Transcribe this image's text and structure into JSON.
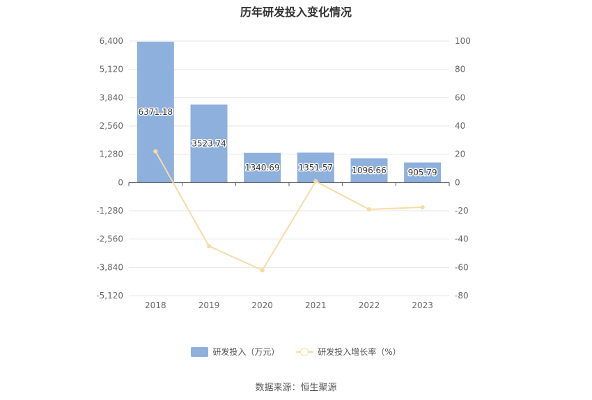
{
  "chart_data": {
    "type": "bar+line",
    "title": "历年研发投入变化情况",
    "categories": [
      "2018",
      "2019",
      "2020",
      "2021",
      "2022",
      "2023"
    ],
    "series": [
      {
        "name": "研发投入（万元）",
        "type": "bar",
        "axis": "left",
        "color": "#8eb0dd",
        "values": [
          6371.18,
          3523.74,
          1340.69,
          1351.57,
          1096.66,
          905.79
        ],
        "labels": [
          "6371.18",
          "3523.74",
          "1340.69",
          "1351.57",
          "1096.66",
          "905.79"
        ]
      },
      {
        "name": "研发投入增长率（%）",
        "type": "line",
        "axis": "right",
        "color": "#f7dba5",
        "values": [
          22.0,
          -45.0,
          -62.0,
          0.8,
          -19.0,
          -17.5
        ]
      }
    ],
    "left_axis": {
      "ylim": [
        -5120,
        6400
      ],
      "ticks": [
        6400,
        5120,
        3840,
        2560,
        1280,
        0,
        -1280,
        -2560,
        -3840,
        -5120
      ],
      "tick_labels": [
        "6,400",
        "5,120",
        "3,840",
        "2,560",
        "1,280",
        "0",
        "-1,280",
        "-2,560",
        "-3,840",
        "-5,120"
      ]
    },
    "right_axis": {
      "ylim": [
        -80,
        100
      ],
      "ticks": [
        100,
        80,
        60,
        40,
        20,
        0,
        -20,
        -40,
        -60,
        -80
      ],
      "tick_labels": [
        "100",
        "80",
        "60",
        "40",
        "20",
        "0",
        "-20",
        "-40",
        "-60",
        "-80"
      ]
    },
    "grid": true,
    "legend_position": "bottom"
  },
  "legend": {
    "bar_label": "研发投入（万元）",
    "line_label": "研发投入增长率（%）"
  },
  "source": "数据来源：恒生聚源"
}
